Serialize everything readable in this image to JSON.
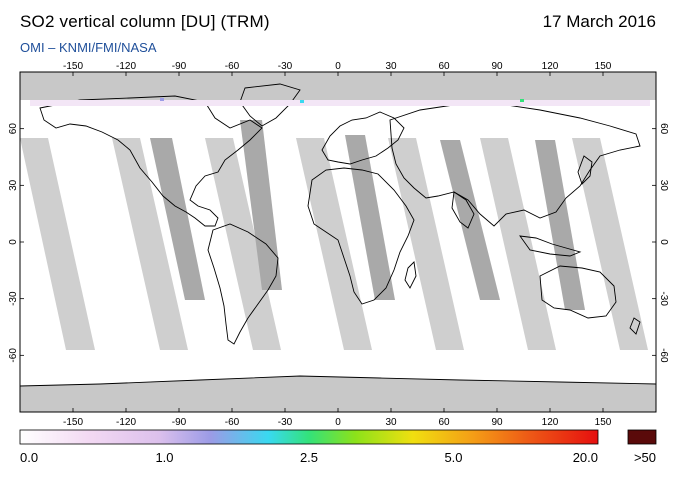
{
  "header": {
    "title": "SO2 vertical column [DU] (TRM)",
    "date": "17 March 2016",
    "source": "OMI  –  KNMI/FMI/NASA"
  },
  "map": {
    "projection": "equirectangular",
    "lon_range": [
      -180,
      180
    ],
    "lat_range": [
      -90,
      90
    ],
    "lon_ticks": [
      "-150",
      "-120",
      "-90",
      "-60",
      "-30",
      "0",
      "30",
      "60",
      "90",
      "120",
      "150"
    ],
    "lat_ticks": [
      "60",
      "30",
      "0",
      "-30",
      "-60"
    ],
    "background_color": "#ffffff",
    "nodata_color": "#c8c8c8",
    "coast_color": "#000000"
  },
  "colorbar": {
    "labels": [
      "0.0",
      "1.0",
      "2.5",
      "5.0",
      "20.0"
    ],
    "overflow_label": ">50",
    "overflow_color": "#5a0a0a",
    "gradient": [
      "#ffffff",
      "#f3d9f3",
      "#dcc0ec",
      "#9b9be6",
      "#39d9f0",
      "#33e27a",
      "#8ce21a",
      "#f0df10",
      "#f4a016",
      "#ee5a16",
      "#e60f0f"
    ]
  }
}
